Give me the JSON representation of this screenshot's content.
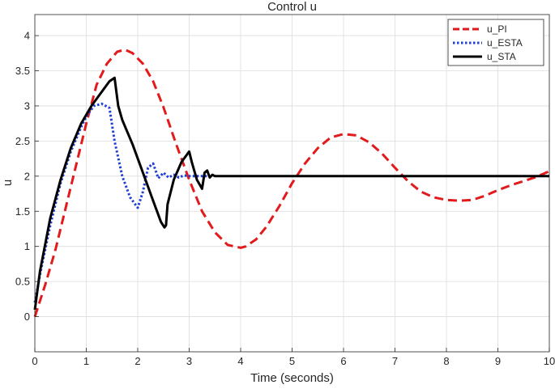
{
  "chart_data": {
    "type": "line",
    "title": "Control u",
    "xlabel": "Time (seconds)",
    "ylabel": "u",
    "xlim": [
      0,
      10
    ],
    "ylim": [
      -0.5,
      4.3
    ],
    "xticks": [
      "0",
      "1",
      "2",
      "3",
      "4",
      "5",
      "6",
      "7",
      "8",
      "9",
      "10"
    ],
    "yticks": [
      "0",
      "0.5",
      "1",
      "1.5",
      "2",
      "2.5",
      "3",
      "3.5",
      "4"
    ],
    "grid": true,
    "legend_position": "top-right",
    "series": [
      {
        "name": "u_PI",
        "color": "#e31a1c",
        "style": "dashed",
        "x": [
          0,
          0.2,
          0.4,
          0.6,
          0.8,
          1.0,
          1.2,
          1.4,
          1.6,
          1.75,
          1.9,
          2.1,
          2.3,
          2.5,
          2.75,
          3.0,
          3.25,
          3.5,
          3.75,
          4.0,
          4.1,
          4.3,
          4.5,
          4.75,
          5.0,
          5.25,
          5.5,
          5.75,
          6.0,
          6.25,
          6.5,
          6.75,
          7.0,
          7.25,
          7.5,
          7.75,
          8.0,
          8.25,
          8.5,
          8.75,
          9.0,
          9.25,
          9.5,
          9.75,
          10.0
        ],
        "y": [
          0.0,
          0.45,
          0.95,
          1.55,
          2.15,
          2.75,
          3.3,
          3.6,
          3.77,
          3.8,
          3.75,
          3.6,
          3.35,
          2.98,
          2.45,
          1.95,
          1.5,
          1.2,
          1.02,
          0.98,
          1.0,
          1.1,
          1.28,
          1.57,
          1.9,
          2.18,
          2.4,
          2.55,
          2.6,
          2.58,
          2.48,
          2.32,
          2.12,
          1.93,
          1.78,
          1.7,
          1.66,
          1.65,
          1.66,
          1.72,
          1.8,
          1.87,
          1.93,
          1.99,
          2.07
        ]
      },
      {
        "name": "u_ESTA",
        "color": "#1f3fd6",
        "style": "dotted",
        "x": [
          0,
          0.1,
          0.3,
          0.5,
          0.7,
          0.9,
          1.0,
          1.15,
          1.3,
          1.45,
          1.55,
          1.7,
          1.85,
          2.0,
          2.1,
          2.2,
          2.3,
          2.4,
          2.5,
          2.6,
          2.7,
          2.8,
          2.9,
          3.0,
          3.2,
          3.4
        ],
        "y": [
          0.2,
          0.6,
          1.3,
          1.9,
          2.35,
          2.7,
          2.85,
          3.0,
          3.03,
          2.97,
          2.5,
          2.0,
          1.7,
          1.55,
          1.78,
          2.12,
          2.18,
          1.97,
          2.05,
          1.98,
          2.02,
          1.98,
          2.01,
          2.0,
          2.0,
          2.0
        ]
      },
      {
        "name": "u_STA",
        "color": "#000000",
        "style": "solid",
        "x": [
          0,
          0.1,
          0.3,
          0.5,
          0.7,
          0.9,
          1.1,
          1.3,
          1.45,
          1.55,
          1.62,
          1.7,
          1.9,
          2.1,
          2.3,
          2.45,
          2.52,
          2.55,
          2.58,
          2.7,
          2.85,
          3.0,
          3.05,
          3.15,
          3.25,
          3.3,
          3.35,
          3.4,
          3.45,
          3.5,
          4.0,
          5.0,
          6.0,
          7.0,
          8.0,
          9.0,
          10.0
        ],
        "y": [
          0.1,
          0.65,
          1.4,
          1.95,
          2.4,
          2.75,
          3.0,
          3.2,
          3.35,
          3.4,
          3.0,
          2.8,
          2.45,
          2.05,
          1.65,
          1.35,
          1.27,
          1.3,
          1.6,
          1.95,
          2.2,
          2.35,
          2.2,
          1.95,
          1.82,
          2.05,
          2.08,
          1.98,
          2.02,
          2.0,
          2.0,
          2.0,
          2.0,
          2.0,
          2.0,
          2.0,
          2.0
        ]
      }
    ]
  }
}
